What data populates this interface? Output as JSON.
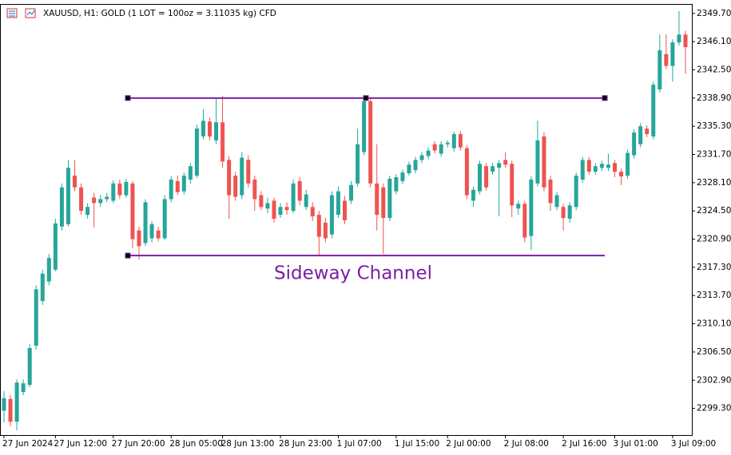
{
  "chart_data": {
    "type": "candlestick",
    "title": "XAUUSD, H1:  GOLD (1 LOT = 100oz = 3.11035 kg) CFD",
    "categories": [
      "27 Jun 2024",
      null,
      null,
      null,
      null,
      null,
      null,
      null,
      "27 Jun 12:00",
      null,
      null,
      null,
      null,
      null,
      null,
      null,
      null,
      "27 Jun 20:00",
      null,
      null,
      null,
      null,
      null,
      null,
      null,
      null,
      "28 Jun 05:00",
      null,
      null,
      null,
      null,
      null,
      null,
      null,
      "28 Jun 13:00",
      null,
      null,
      null,
      null,
      null,
      null,
      null,
      null,
      "28 Jun 23:00",
      null,
      null,
      null,
      null,
      null,
      null,
      null,
      null,
      "1 Jul 07:00",
      null,
      null,
      null,
      null,
      null,
      null,
      null,
      null,
      "1 Jul 15:00",
      null,
      null,
      null,
      null,
      null,
      null,
      null,
      "2 Jul 00:00",
      null,
      null,
      null,
      null,
      null,
      null,
      null,
      null,
      "2 Jul 08:00",
      null,
      null,
      null,
      null,
      null,
      null,
      null,
      null,
      "2 Jul 16:00",
      null,
      null,
      null,
      null,
      null,
      null,
      null,
      "3 Jul 01:00",
      null,
      null,
      null,
      null,
      null,
      null,
      null,
      null,
      "3 Jul 09:00",
      null,
      null
    ],
    "open": [
      2299.0,
      2300.5,
      2297.6,
      2301.4,
      2302.3,
      2307.3,
      2313.0,
      2315.5,
      2317.0,
      2322.5,
      2322.8,
      2329.0,
      2327.5,
      2324.0,
      2326.2,
      2325.5,
      2326.0,
      2325.8,
      2328.0,
      2326.5,
      2328.0,
      2322.0,
      2320.4,
      2321.0,
      2322.0,
      2321.0,
      2326.0,
      2328.3,
      2327.0,
      2328.5,
      2329.0,
      2334.0,
      2335.9,
      2333.5,
      2335.8,
      2331.0,
      2329.0,
      2326.5,
      2331.0,
      2328.5,
      2326.5,
      2324.8,
      2325.8,
      2324.0,
      2325.0,
      2324.5,
      2328.3,
      2325.0,
      2325.0,
      2324.0,
      2323.0,
      2321.5,
      2324.0,
      2325.8,
      2325.8,
      2328.0,
      2332.0,
      2338.5,
      2328.0,
      2327.5,
      2323.6,
      2327.0,
      2328.3,
      2329.3,
      2329.7,
      2331.0,
      2331.5,
      2333.0,
      2331.8,
      2333.0,
      2332.5,
      2334.3,
      2332.5,
      2325.8,
      2327.0,
      2330.2,
      2329.5,
      2330.0,
      2331.0,
      2330.5,
      2324.8,
      2325.4,
      2321.3,
      2328.0,
      2334.0,
      2328.5,
      2325.0,
      2325.0,
      2323.5,
      2325.0,
      2328.5,
      2331.0,
      2329.5,
      2330.0,
      2330.0,
      2330.6,
      2329.5,
      2329.0,
      2331.6,
      2333.0,
      2335.0,
      2334.0,
      2340.0,
      2344.5,
      2343.0,
      2346.0,
      2347.0
    ],
    "high": [
      2301.5,
      2301.0,
      2303.0,
      2303.0,
      2307.5,
      2315.0,
      2317.0,
      2319.0,
      2323.5,
      2328.0,
      2331.0,
      2331.0,
      2328.0,
      2325.5,
      2326.8,
      2326.5,
      2326.8,
      2328.4,
      2328.5,
      2328.6,
      2328.3,
      2322.5,
      2326.0,
      2323.2,
      2322.5,
      2326.5,
      2328.9,
      2329.0,
      2329.4,
      2330.6,
      2335.5,
      2337.5,
      2336.4,
      2338.8,
      2339.2,
      2331.5,
      2329.5,
      2332.0,
      2331.6,
      2329.0,
      2327.0,
      2326.2,
      2326.2,
      2325.5,
      2325.6,
      2328.5,
      2328.8,
      2327.2,
      2325.6,
      2324.5,
      2323.6,
      2327.0,
      2327.6,
      2326.4,
      2328.3,
      2335.0,
      2339.0,
      2339.0,
      2333.0,
      2328.0,
      2329.0,
      2329.2,
      2329.8,
      2330.8,
      2331.4,
      2332.0,
      2332.6,
      2333.4,
      2333.4,
      2333.5,
      2334.6,
      2334.7,
      2332.9,
      2327.6,
      2330.9,
      2330.6,
      2330.6,
      2331.0,
      2332.0,
      2330.9,
      2325.8,
      2325.8,
      2328.9,
      2336.0,
      2334.5,
      2329.0,
      2326.9,
      2325.4,
      2325.6,
      2329.4,
      2331.4,
      2331.4,
      2330.6,
      2330.9,
      2331.8,
      2331.0,
      2329.9,
      2332.3,
      2334.9,
      2335.7,
      2335.4,
      2341.0,
      2347.0,
      2347.0,
      2346.4,
      2350.0,
      2347.5
    ],
    "low": [
      2297.5,
      2297.0,
      2296.5,
      2301.0,
      2302.0,
      2306.8,
      2312.5,
      2315.0,
      2316.8,
      2322.0,
      2322.5,
      2327.0,
      2324.0,
      2323.5,
      2322.4,
      2325.0,
      2325.6,
      2325.5,
      2326.0,
      2326.2,
      2319.8,
      2318.3,
      2320.0,
      2320.5,
      2320.6,
      2320.8,
      2325.6,
      2326.5,
      2326.6,
      2328.0,
      2328.7,
      2333.6,
      2333.5,
      2333.0,
      2330.0,
      2323.5,
      2325.8,
      2326.0,
      2327.5,
      2324.5,
      2324.6,
      2324.2,
      2323.0,
      2323.6,
      2324.0,
      2324.2,
      2325.2,
      2324.6,
      2323.2,
      2318.8,
      2320.5,
      2321.0,
      2323.6,
      2322.8,
      2325.4,
      2327.6,
      2331.6,
      2327.5,
      2322.0,
      2319.0,
      2323.2,
      2326.6,
      2327.9,
      2329.0,
      2329.3,
      2330.6,
      2331.1,
      2331.8,
      2331.4,
      2332.6,
      2332.1,
      2332.2,
      2326.0,
      2325.0,
      2326.6,
      2327.1,
      2329.1,
      2323.8,
      2330.0,
      2323.7,
      2324.0,
      2320.5,
      2319.5,
      2327.6,
      2327.0,
      2324.5,
      2324.6,
      2322.0,
      2323.0,
      2324.6,
      2328.1,
      2329.1,
      2329.1,
      2329.6,
      2329.6,
      2328.8,
      2327.8,
      2328.6,
      2331.2,
      2332.6,
      2333.9,
      2333.6,
      2339.6,
      2342.6,
      2341.0,
      2345.6,
      2342.0
    ],
    "close": [
      2300.6,
      2297.6,
      2302.6,
      2302.5,
      2307.0,
      2314.5,
      2316.5,
      2318.5,
      2322.9,
      2327.5,
      2330.0,
      2327.5,
      2324.5,
      2325.0,
      2325.5,
      2326.0,
      2326.3,
      2328.0,
      2326.5,
      2328.2,
      2320.9,
      2320.0,
      2325.6,
      2322.8,
      2321.0,
      2326.0,
      2328.5,
      2326.9,
      2329.0,
      2330.2,
      2335.0,
      2336.0,
      2334.0,
      2335.8,
      2330.8,
      2326.5,
      2326.3,
      2331.3,
      2328.0,
      2326.0,
      2325.0,
      2325.5,
      2323.5,
      2325.0,
      2324.6,
      2328.0,
      2325.8,
      2326.6,
      2323.8,
      2321.2,
      2321.0,
      2326.5,
      2327.0,
      2323.3,
      2327.8,
      2333.0,
      2338.5,
      2328.0,
      2324.0,
      2323.6,
      2328.6,
      2328.8,
      2329.4,
      2330.4,
      2331.0,
      2331.6,
      2332.2,
      2332.2,
      2333.0,
      2333.2,
      2334.3,
      2332.6,
      2326.5,
      2327.2,
      2330.5,
      2327.5,
      2330.2,
      2330.6,
      2330.4,
      2325.2,
      2325.4,
      2321.1,
      2328.5,
      2333.5,
      2327.5,
      2325.5,
      2326.5,
      2323.6,
      2325.2,
      2329.0,
      2331.0,
      2329.5,
      2330.2,
      2330.5,
      2330.4,
      2329.5,
      2328.9,
      2331.9,
      2334.5,
      2335.3,
      2334.3,
      2340.6,
      2345.0,
      2343.0,
      2346.0,
      2347.0,
      2345.4
    ],
    "up_color": "#26a69a",
    "down_color": "#ef5350",
    "ylim": [
      2295.9,
      2350.9
    ],
    "yticks": [
      {
        "value": 2349.7,
        "label": "2349.70"
      },
      {
        "value": 2346.1,
        "label": "2346.10"
      },
      {
        "value": 2342.5,
        "label": "2342.50"
      },
      {
        "value": 2338.9,
        "label": "2338.90"
      },
      {
        "value": 2335.3,
        "label": "2335.30"
      },
      {
        "value": 2331.7,
        "label": "2331.70"
      },
      {
        "value": 2328.1,
        "label": "2328.10"
      },
      {
        "value": 2324.5,
        "label": "2324.50"
      },
      {
        "value": 2320.9,
        "label": "2320.90"
      },
      {
        "value": 2317.3,
        "label": "2317.30"
      },
      {
        "value": 2313.7,
        "label": "2313.70"
      },
      {
        "value": 2310.1,
        "label": "2310.10"
      },
      {
        "value": 2306.5,
        "label": "2306.50"
      },
      {
        "value": 2302.9,
        "label": "2302.90"
      },
      {
        "value": 2299.3,
        "label": "2299.30"
      }
    ],
    "grid": false,
    "channel": {
      "label": "Sideway Channel",
      "upper": 2338.9,
      "lower": 2318.8,
      "color": "#7b1fa2"
    }
  }
}
